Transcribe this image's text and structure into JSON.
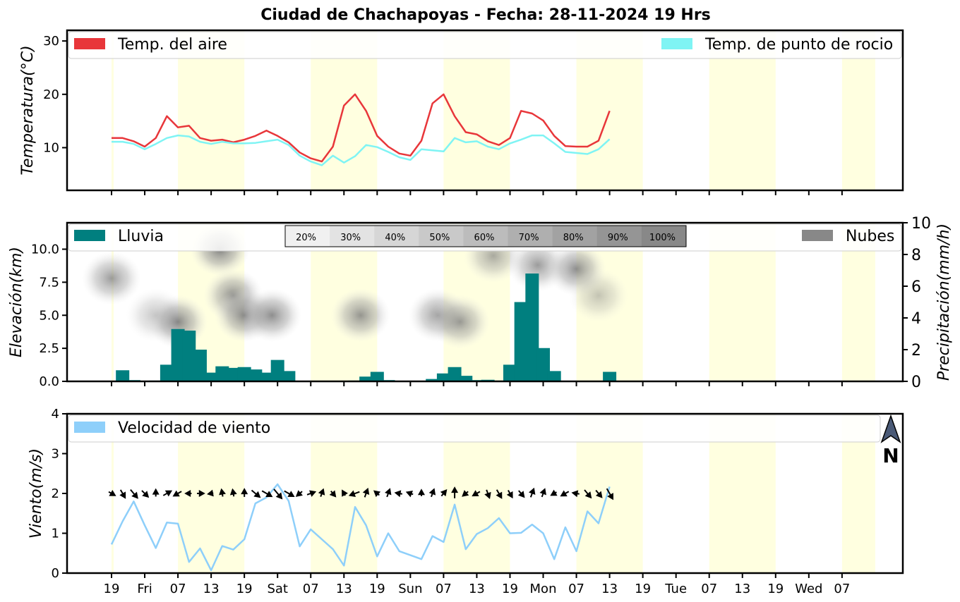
{
  "title": "Ciudad de Chachapoyas   -   Fecha: 28-11-2024 19 Hrs",
  "x_ticks": [
    "19",
    "Fri",
    "07",
    "13",
    "19",
    "Sat",
    "07",
    "13",
    "19",
    "Sun",
    "07",
    "13",
    "19",
    "Mon",
    "07",
    "13",
    "19",
    "Tue",
    "07",
    "13",
    "19",
    "Wed",
    "07"
  ],
  "chart_data": [
    {
      "type": "line",
      "ylabel": "Temperatura(°C)",
      "ylim": [
        2,
        32
      ],
      "yticks": [
        "10",
        "20",
        "30"
      ],
      "legend": [
        "Temp. del aire",
        "Temp. de punto de rocio"
      ],
      "colors": {
        "air": "#e8363a",
        "dew": "#7ff4f4"
      },
      "series": [
        {
          "name": "Temp. del aire",
          "values": [
            11.8,
            11.8,
            11.2,
            10.2,
            11.8,
            15.9,
            13.8,
            14.1,
            11.8,
            11.3,
            11.5,
            11.0,
            11.5,
            12.2,
            13.2,
            12.2,
            11.0,
            9.1,
            8.0,
            7.4,
            10.2,
            17.9,
            20.0,
            16.9,
            12.2,
            10.2,
            8.9,
            8.5,
            11.3,
            18.3,
            20.0,
            15.9,
            12.9,
            12.5,
            11.2,
            10.5,
            11.8,
            16.9,
            16.4,
            15.1,
            12.2,
            10.3,
            10.2,
            10.2,
            11.3,
            16.9
          ]
        },
        {
          "name": "Temp. de punto de rocio",
          "values": [
            11.1,
            11.1,
            10.7,
            9.7,
            10.7,
            11.8,
            12.3,
            12.1,
            11.1,
            10.7,
            11.1,
            10.8,
            10.8,
            10.9,
            11.2,
            11.5,
            10.5,
            8.5,
            7.4,
            6.7,
            8.5,
            7.2,
            8.4,
            10.5,
            10.1,
            9.2,
            8.2,
            7.7,
            9.7,
            9.5,
            9.3,
            11.8,
            11.0,
            11.2,
            10.2,
            9.7,
            10.8,
            11.5,
            12.3,
            12.3,
            10.8,
            9.2,
            9.0,
            8.8,
            9.7,
            11.6
          ]
        }
      ]
    },
    {
      "type": "bar",
      "ylabel_left": "Elevación(km)",
      "ylabel_right": "Precipitación(mm/h)",
      "ylim_left": [
        0,
        12
      ],
      "ylim_right": [
        0,
        10
      ],
      "yticks_left": [
        "0.0",
        "2.5",
        "5.0",
        "7.5",
        "10.0"
      ],
      "yticks_right": [
        "0",
        "2",
        "4",
        "6",
        "8",
        "10"
      ],
      "legend": [
        "Lluvia",
        "Nubes"
      ],
      "colors": {
        "rain": "#007f7f",
        "cloud": "#888888"
      },
      "cloud_scale": [
        "20%",
        "30%",
        "40%",
        "50%",
        "60%",
        "70%",
        "80%",
        "90%",
        "100%"
      ],
      "series": [
        {
          "name": "Lluvia",
          "values": [
            0.0,
            0.7,
            0.08,
            0.03,
            0.05,
            1.05,
            3.3,
            3.2,
            2.0,
            0.55,
            0.95,
            0.85,
            0.9,
            0.75,
            0.55,
            1.35,
            0.65,
            0.0,
            0.0,
            0.0,
            0.0,
            0.03,
            0.05,
            0.3,
            0.6,
            0.08,
            0.0,
            0.0,
            0.03,
            0.15,
            0.5,
            0.9,
            0.35,
            0.08,
            0.1,
            0.05,
            1.05,
            5.0,
            6.8,
            2.1,
            0.65,
            0.03,
            0.0,
            0.0,
            0.0,
            0.6
          ]
        }
      ],
      "clouds": [
        {
          "x": 0.0,
          "elev": 7.8,
          "opacity": 0.75
        },
        {
          "x": 4.0,
          "elev": 5.0,
          "opacity": 0.45
        },
        {
          "x": 6.0,
          "elev": 4.5,
          "opacity": 0.9
        },
        {
          "x": 9.8,
          "elev": 10.0,
          "opacity": 0.95
        },
        {
          "x": 11.0,
          "elev": 6.5,
          "opacity": 0.85
        },
        {
          "x": 12.0,
          "elev": 5.0,
          "opacity": 0.9
        },
        {
          "x": 14.5,
          "elev": 5.0,
          "opacity": 0.85
        },
        {
          "x": 22.5,
          "elev": 5.0,
          "opacity": 0.8
        },
        {
          "x": 29.5,
          "elev": 5.0,
          "opacity": 0.75
        },
        {
          "x": 31.5,
          "elev": 4.5,
          "opacity": 0.75
        },
        {
          "x": 34.5,
          "elev": 9.5,
          "opacity": 0.65
        },
        {
          "x": 38.5,
          "elev": 8.8,
          "opacity": 0.75
        },
        {
          "x": 42.0,
          "elev": 8.5,
          "opacity": 0.85
        },
        {
          "x": 44.0,
          "elev": 6.5,
          "opacity": 0.45
        }
      ]
    },
    {
      "type": "line",
      "ylabel": "Viento(m/s)",
      "ylim": [
        0,
        4
      ],
      "yticks": [
        "0",
        "1",
        "2",
        "3",
        "4"
      ],
      "legend": [
        "Velocidad de viento"
      ],
      "colors": {
        "wind": "#8ecffa",
        "north_arrow": "#4a5a77"
      },
      "north_label": "N",
      "series": [
        {
          "name": "Velocidad de viento",
          "values": [
            0.72,
            1.3,
            1.8,
            1.2,
            0.63,
            1.27,
            1.24,
            0.28,
            0.62,
            0.07,
            0.68,
            0.59,
            0.85,
            1.75,
            1.9,
            2.23,
            1.81,
            0.67,
            1.1,
            0.85,
            0.6,
            0.19,
            1.66,
            1.2,
            0.42,
            1.0,
            0.55,
            0.45,
            0.35,
            0.93,
            0.78,
            1.72,
            0.6,
            0.98,
            1.13,
            1.38,
            1.0,
            1.01,
            1.22,
            1.0,
            0.35,
            1.15,
            0.55,
            1.55,
            1.25,
            2.17
          ]
        },
        {
          "name": "Direccion de viento",
          "values": [
            300,
            330,
            320,
            315,
            180,
            240,
            60,
            90,
            270,
            80,
            170,
            170,
            180,
            310,
            300,
            320,
            300,
            50,
            250,
            200,
            320,
            150,
            70,
            200,
            130,
            200,
            100,
            110,
            180,
            200,
            220,
            180,
            50,
            60,
            340,
            330,
            330,
            320,
            200,
            200,
            60,
            60,
            100,
            320,
            320,
            330
          ]
        }
      ]
    }
  ]
}
